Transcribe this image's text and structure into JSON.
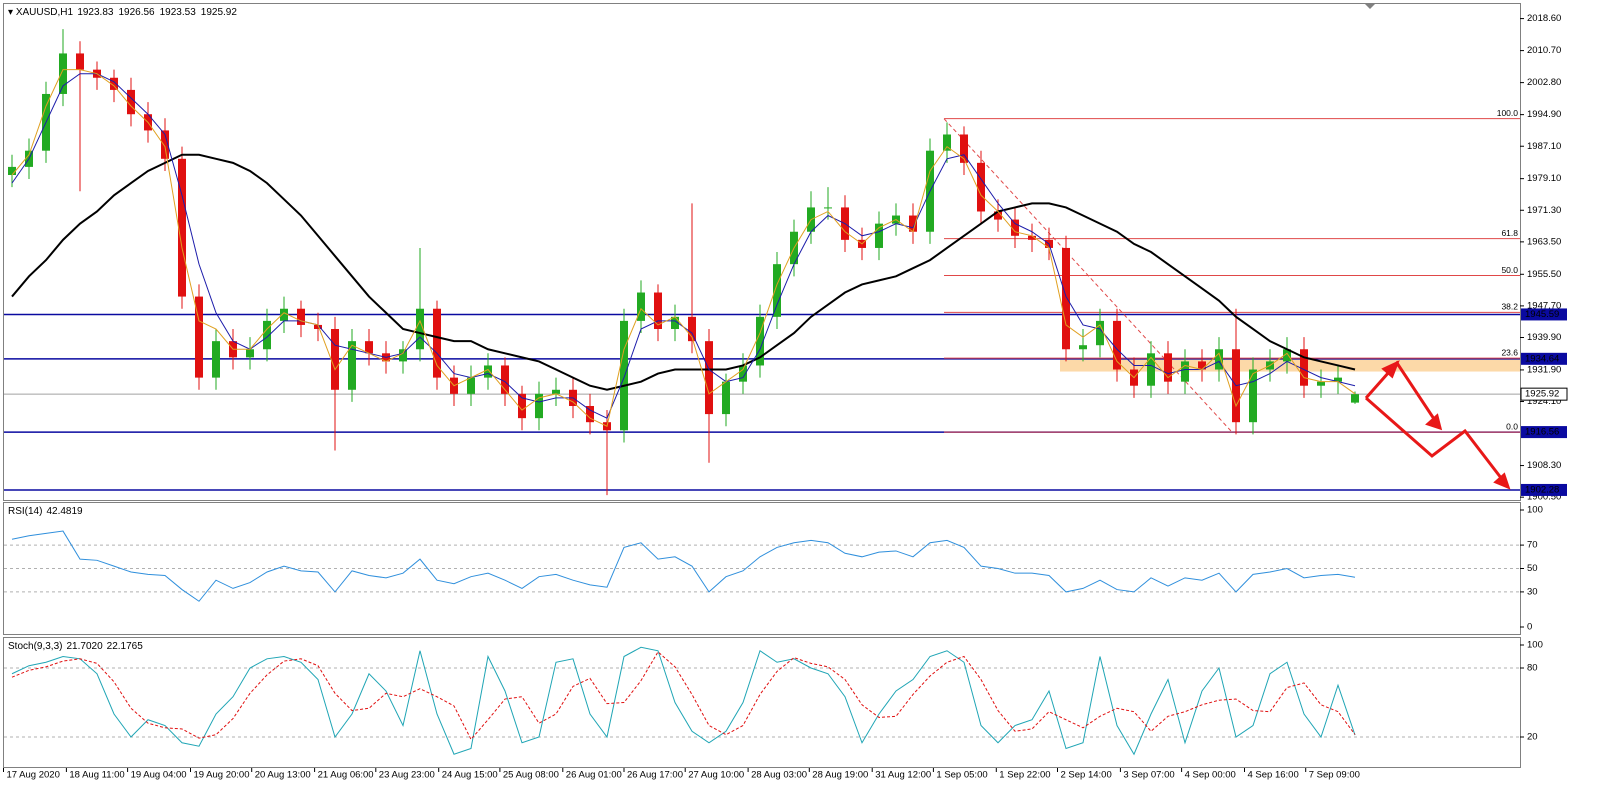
{
  "chart_data": [
    {
      "type": "candlestick",
      "title": "XAUUSD,H1",
      "up_color": "#22aa22",
      "down_color": "#e01010",
      "ylim": [
        1899.8,
        2022.2
      ],
      "yticks": [
        {
          "value": 2018.6,
          "label": "2018.60"
        },
        {
          "value": 2010.7,
          "label": "2010.70"
        },
        {
          "value": 2002.8,
          "label": "2002.80"
        },
        {
          "value": 1994.9,
          "label": "1994.90"
        },
        {
          "value": 1987.1,
          "label": "1987.10"
        },
        {
          "value": 1979.1,
          "label": "1979.10"
        },
        {
          "value": 1971.3,
          "label": "1971.30"
        },
        {
          "value": 1963.5,
          "label": "1963.50"
        },
        {
          "value": 1955.5,
          "label": "1955.50"
        },
        {
          "value": 1947.7,
          "label": "1947.70"
        },
        {
          "value": 1939.9,
          "label": "1939.90"
        },
        {
          "value": 1931.9,
          "label": "1931.90"
        },
        {
          "value": 1924.1,
          "label": "1924.10"
        },
        {
          "value": 1908.3,
          "label": "1908.30"
        },
        {
          "value": 1900.5,
          "label": "1900.50"
        }
      ],
      "xticks": [
        {
          "value": -0.5,
          "label": "17 Aug 2020"
        },
        {
          "value": 3.2,
          "label": "18 Aug 11:00"
        },
        {
          "value": 6.8,
          "label": "19 Aug 04:00"
        },
        {
          "value": 10.5,
          "label": "19 Aug 20:00"
        },
        {
          "value": 14.1,
          "label": "20 Aug 13:00"
        },
        {
          "value": 17.8,
          "label": "21 Aug 06:00"
        },
        {
          "value": 21.4,
          "label": "23 Aug 23:00"
        },
        {
          "value": 25.1,
          "label": "24 Aug 15:00"
        },
        {
          "value": 28.7,
          "label": "25 Aug 08:00"
        },
        {
          "value": 32.4,
          "label": "26 Aug 01:00"
        },
        {
          "value": 36.0,
          "label": "26 Aug 17:00"
        },
        {
          "value": 39.6,
          "label": "27 Aug 10:00"
        },
        {
          "value": 43.3,
          "label": "28 Aug 03:00"
        },
        {
          "value": 46.9,
          "label": "28 Aug 19:00"
        },
        {
          "value": 50.6,
          "label": "31 Aug 12:00"
        },
        {
          "value": 54.2,
          "label": "1 Sep 05:00"
        },
        {
          "value": 57.9,
          "label": "1 Sep 22:00"
        },
        {
          "value": 61.5,
          "label": "2 Sep 14:00"
        },
        {
          "value": 65.2,
          "label": "3 Sep 07:00"
        },
        {
          "value": 68.8,
          "label": "4 Sep 00:00"
        },
        {
          "value": 72.5,
          "label": "4 Sep 16:00"
        },
        {
          "value": 76.1,
          "label": "7 Sep 09:00"
        }
      ],
      "open": [
        1980,
        1982,
        1986,
        2000,
        2010,
        2006,
        2004,
        2001,
        1995,
        1991,
        1984,
        1950,
        1930,
        1939,
        1935,
        1937,
        1944,
        1947,
        1943,
        1942,
        1927,
        1939,
        1936,
        1934,
        1937,
        1947,
        1930,
        1926,
        1930,
        1933,
        1926,
        1920,
        1926,
        1927,
        1923,
        1919,
        1917,
        1944,
        1951,
        1942,
        1945,
        1939,
        1921,
        1929,
        1933,
        1945,
        1958,
        1966,
        1972,
        1972,
        1964,
        1962,
        1968,
        1970,
        1966,
        1986,
        1990,
        1983,
        1971,
        1969,
        1965,
        1964,
        1962,
        1937,
        1938,
        1944,
        1932,
        1928,
        1936,
        1929,
        1934,
        1932,
        1937,
        1919,
        1932,
        1934,
        1937,
        1928,
        1929,
        1923.83
      ],
      "high": [
        1985,
        1989,
        2003,
        2016,
        2013,
        2008,
        2006,
        2004,
        1998,
        1994,
        1987,
        1953,
        1942,
        1942,
        1940,
        1947,
        1950,
        1949,
        1946,
        1945,
        1942,
        1942,
        1939,
        1939,
        1962,
        1949,
        1933,
        1933,
        1936,
        1935,
        1928,
        1929,
        1930,
        1930,
        1926,
        1922,
        1947,
        1954,
        1953,
        1948,
        1973,
        1942,
        1931,
        1936,
        1948,
        1961,
        1969,
        1976,
        1977,
        1975,
        1967,
        1971,
        1973,
        1973,
        1989,
        1993,
        1992,
        1986,
        1974,
        1972,
        1968,
        1967,
        1965,
        1942,
        1947,
        1947,
        1935,
        1939,
        1939,
        1937,
        1937,
        1940,
        1947,
        1935,
        1937,
        1940,
        1940,
        1932,
        1933,
        1926.56
      ],
      "low": [
        1977,
        1979,
        1983,
        1997,
        1976,
        2001,
        1998,
        1992,
        1988,
        1981,
        1947,
        1927,
        1927,
        1932,
        1932,
        1934,
        1941,
        1940,
        1939,
        1912,
        1924,
        1933,
        1931,
        1931,
        1934,
        1927,
        1923,
        1923,
        1927,
        1923,
        1917,
        1917,
        1923,
        1920,
        1916,
        1901,
        1914,
        1941,
        1939,
        1939,
        1936,
        1909,
        1918,
        1926,
        1930,
        1942,
        1955,
        1963,
        1969,
        1961,
        1959,
        1959,
        1965,
        1963,
        1963,
        1983,
        1980,
        1968,
        1966,
        1962,
        1961,
        1959,
        1934,
        1934,
        1935,
        1929,
        1925,
        1925,
        1926,
        1926,
        1929,
        1929,
        1916,
        1916,
        1929,
        1931,
        1925,
        1925,
        1926,
        1923.53
      ],
      "close": [
        1982,
        1986,
        2000,
        2010,
        2006,
        2004,
        2001,
        1995,
        1991,
        1984,
        1950,
        1930,
        1939,
        1935,
        1937,
        1944,
        1947,
        1943,
        1942,
        1927,
        1939,
        1936,
        1934,
        1937,
        1947,
        1930,
        1926,
        1930,
        1933,
        1926,
        1920,
        1926,
        1927,
        1923,
        1919,
        1917,
        1944,
        1951,
        1942,
        1945,
        1939,
        1921,
        1929,
        1933,
        1945,
        1958,
        1966,
        1972,
        1972,
        1964,
        1962,
        1968,
        1970,
        1966,
        1986,
        1990,
        1983,
        1971,
        1969,
        1965,
        1964,
        1962,
        1937,
        1938,
        1944,
        1932,
        1928,
        1936,
        1929,
        1934,
        1932,
        1937,
        1919,
        1932,
        1934,
        1937,
        1928,
        1929,
        1930,
        1925.92
      ],
      "lines": [
        {
          "color": "#000000",
          "width": 2,
          "values": [
            1950,
            1955,
            1959,
            1964,
            1968,
            1971,
            1975,
            1978,
            1981,
            1983,
            1985,
            1985,
            1984,
            1983,
            1981,
            1978,
            1974,
            1970,
            1965,
            1960,
            1955,
            1950,
            1946,
            1942,
            1941,
            1940,
            1939,
            1939,
            1937,
            1936,
            1935,
            1934,
            1932,
            1930,
            1928,
            1927,
            1928,
            1929,
            1931,
            1932,
            1932,
            1932,
            1932,
            1933,
            1935,
            1938,
            1941,
            1945,
            1948,
            1951,
            1953,
            1954,
            1955,
            1957,
            1959,
            1962,
            1965,
            1968,
            1971,
            1972,
            1973,
            1973,
            1972,
            1970,
            1968,
            1966,
            1963,
            1961,
            1958,
            1955,
            1952,
            1949,
            1945,
            1942,
            1939,
            1937,
            1935,
            1934,
            1933,
            1932
          ]
        },
        {
          "color": "#1c1caa",
          "width": 1,
          "values": [
            1978,
            1984,
            1993,
            2002,
            2005,
            2005,
            2003,
            1999,
            1995,
            1990,
            1975,
            1958,
            1946,
            1939,
            1937,
            1940,
            1944,
            1944,
            1943,
            1938,
            1937,
            1936,
            1935,
            1936,
            1940,
            1936,
            1931,
            1930,
            1931,
            1929,
            1925,
            1924,
            1925,
            1925,
            1922,
            1920,
            1930,
            1942,
            1944,
            1944,
            1941,
            1932,
            1929,
            1930,
            1937,
            1948,
            1958,
            1966,
            1970,
            1968,
            1965,
            1966,
            1968,
            1967,
            1976,
            1984,
            1985,
            1979,
            1973,
            1968,
            1966,
            1963,
            1950,
            1943,
            1942,
            1937,
            1933,
            1933,
            1931,
            1932,
            1932,
            1934,
            1928,
            1929,
            1931,
            1934,
            1932,
            1930,
            1929,
            1928
          ]
        },
        {
          "color": "#e0a020",
          "width": 1,
          "values": [
            1980,
            1985,
            1997,
            2006,
            2006,
            2005,
            2002,
            1997,
            1993,
            1987,
            1962,
            1944,
            1942,
            1937,
            1937,
            1942,
            1946,
            1944,
            1943,
            1932,
            1938,
            1936,
            1934,
            1936,
            1944,
            1933,
            1928,
            1930,
            1932,
            1927,
            1922,
            1925,
            1926,
            1924,
            1920,
            1918,
            1937,
            1947,
            1943,
            1945,
            1940,
            1926,
            1929,
            1932,
            1941,
            1953,
            1962,
            1969,
            1971,
            1966,
            1963,
            1967,
            1969,
            1966,
            1981,
            1987,
            1984,
            1975,
            1971,
            1966,
            1965,
            1962,
            1943,
            1940,
            1943,
            1934,
            1930,
            1935,
            1930,
            1933,
            1932,
            1936,
            1923,
            1931,
            1933,
            1936,
            1930,
            1929,
            1929,
            1926
          ]
        }
      ],
      "levels": [
        {
          "price": 1945.59,
          "color": "#0a0aa0"
        },
        {
          "price": 1934.64,
          "color": "#0a0aa0"
        },
        {
          "price": 1916.56,
          "color": "#0a0aa0"
        },
        {
          "price": 1902.28,
          "color": "#0a0aa0"
        }
      ],
      "price_line_color": "#a0a0a0",
      "zone": [
        1931.5,
        1934.6
      ],
      "zone_color": "#fcd9a8",
      "fib_color": "#e04848",
      "fib": [
        {
          "label": "100.0",
          "price": 1993.9
        },
        {
          "label": "61.8",
          "price": 1964.3
        },
        {
          "label": "50.0",
          "price": 1955.2
        },
        {
          "label": "38.2",
          "price": 1946.1
        },
        {
          "label": "23.6",
          "price": 1934.8
        },
        {
          "label": "0.0",
          "price": 1916.56
        }
      ]
    },
    {
      "type": "line",
      "title": "RSI(14)",
      "ylim": [
        0,
        100
      ],
      "yticks": [
        100,
        70,
        50,
        30,
        0
      ],
      "grid": true,
      "series": [
        {
          "color": "#2f8fdc",
          "values": [
            75,
            78,
            80,
            82,
            58,
            57,
            52,
            47,
            45,
            44,
            32,
            22,
            40,
            33,
            38,
            47,
            52,
            48,
            47,
            30,
            48,
            44,
            42,
            46,
            58,
            40,
            37,
            43,
            46,
            40,
            33,
            43,
            45,
            40,
            36,
            34,
            68,
            72,
            58,
            60,
            52,
            30,
            43,
            48,
            60,
            68,
            72,
            74,
            72,
            63,
            60,
            64,
            65,
            60,
            72,
            74,
            68,
            52,
            50,
            46,
            46,
            44,
            30,
            33,
            40,
            32,
            30,
            42,
            35,
            42,
            40,
            46,
            30,
            45,
            47,
            50,
            42,
            44,
            45,
            42.4819
          ]
        }
      ]
    },
    {
      "type": "line",
      "title": "Stoch(9,3,3)",
      "ylim": [
        0,
        100
      ],
      "yticks": [
        100,
        80,
        20
      ],
      "grid": true,
      "series": [
        {
          "color": "#1fa5b5",
          "values": [
            75,
            82,
            85,
            90,
            88,
            75,
            40,
            20,
            35,
            30,
            15,
            12,
            40,
            55,
            80,
            88,
            90,
            85,
            70,
            20,
            40,
            75,
            60,
            30,
            95,
            40,
            5,
            10,
            90,
            60,
            15,
            20,
            85,
            88,
            40,
            20,
            90,
            98,
            95,
            50,
            25,
            15,
            25,
            50,
            95,
            85,
            88,
            80,
            75,
            55,
            15,
            40,
            60,
            70,
            90,
            95,
            85,
            30,
            15,
            30,
            35,
            60,
            10,
            15,
            90,
            30,
            5,
            40,
            70,
            15,
            60,
            80,
            20,
            30,
            75,
            85,
            40,
            20,
            65,
            21.702
          ],
          "value_labels": [
            null,
            null,
            null,
            null,
            null,
            null,
            null,
            null,
            null,
            null,
            null,
            null,
            null,
            null,
            null,
            null,
            null,
            null,
            null,
            null,
            null,
            null,
            null,
            null,
            null,
            null,
            null,
            null,
            null,
            null,
            null,
            null,
            null,
            null,
            null,
            null,
            null,
            null,
            null,
            null,
            null,
            null,
            null,
            null,
            null,
            null,
            null,
            null,
            null,
            null,
            null,
            null,
            null,
            null,
            null,
            null,
            null,
            null,
            null,
            null,
            null,
            null,
            null,
            null,
            null,
            null,
            null,
            null,
            null,
            null,
            null,
            null,
            null,
            null,
            null,
            null,
            null,
            null,
            null,
            "21.7020"
          ]
        },
        {
          "color": "#e01010",
          "style": "dashed",
          "values": [
            72,
            78,
            81,
            86,
            88,
            84,
            68,
            45,
            32,
            28,
            27,
            19,
            22,
            36,
            58,
            74,
            86,
            88,
            82,
            58,
            43,
            45,
            58,
            55,
            62,
            55,
            47,
            18,
            35,
            53,
            55,
            32,
            40,
            64,
            71,
            49,
            50,
            69,
            94,
            81,
            57,
            30,
            22,
            30,
            57,
            77,
            89,
            84,
            81,
            70,
            48,
            37,
            38,
            57,
            73,
            85,
            90,
            70,
            43,
            25,
            27,
            42,
            35,
            28,
            38,
            45,
            42,
            25,
            38,
            42,
            48,
            52,
            53,
            43,
            42,
            63,
            67,
            48,
            42,
            22.1765
          ]
        }
      ]
    }
  ]
}
